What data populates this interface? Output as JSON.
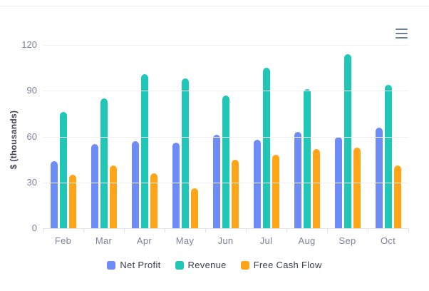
{
  "toolbar": {
    "menu_icon": "hamburger-menu"
  },
  "chart_data": {
    "type": "bar",
    "title": "",
    "xlabel": "",
    "ylabel": "$ (thousands)",
    "categories": [
      "Feb",
      "Mar",
      "Apr",
      "May",
      "Jun",
      "Jul",
      "Aug",
      "Sep",
      "Oct"
    ],
    "series": [
      {
        "name": "Net Profit",
        "color": "#6e8cf7",
        "values": [
          44,
          55,
          57,
          56,
          61,
          58,
          63,
          60,
          66
        ]
      },
      {
        "name": "Revenue",
        "color": "#20c7b6",
        "values": [
          76,
          85,
          101,
          98,
          87,
          105,
          91,
          114,
          94
        ]
      },
      {
        "name": "Free Cash Flow",
        "color": "#ffa517",
        "values": [
          35,
          41,
          36,
          26,
          45,
          48,
          52,
          53,
          41
        ]
      }
    ],
    "ylim": [
      0,
      120
    ],
    "yticks": [
      0,
      30,
      60,
      90,
      120
    ],
    "grid": true,
    "legend_position": "bottom"
  },
  "colors": {
    "background": "#ffffff",
    "top_border": "#ededed",
    "grid": "#f0f0f0",
    "axis_line": "#e3e3e3",
    "tick": "#e2e2e2",
    "axis_label": "#7e8299",
    "legend_text": "#373d4f",
    "ytitle": "#3d4157",
    "menu_icon": "#6e8192"
  }
}
